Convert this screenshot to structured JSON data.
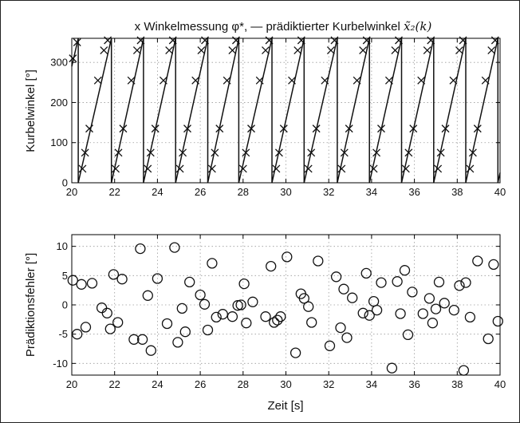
{
  "figure": {
    "title_prefix": "x Winkelmessung φ*, — prädiktierter Kurbelwinkel ",
    "title_math": "x̃₂(k)"
  },
  "chart_data": [
    {
      "type": "line",
      "ylabel": "Kurbelwinkel [°]",
      "xlabel": "",
      "xlim": [
        20,
        40
      ],
      "ylim": [
        0,
        360
      ],
      "xticks": [
        20,
        22,
        24,
        26,
        28,
        30,
        32,
        34,
        36,
        38,
        40
      ],
      "yticks": [
        0,
        100,
        200,
        300
      ],
      "grid": true,
      "cycle_starts": [
        20.3,
        21.85,
        23.35,
        24.85,
        26.35,
        27.8,
        29.35,
        30.85,
        32.4,
        33.9,
        35.4,
        36.9,
        38.4,
        39.9
      ],
      "series": [
        {
          "name": "prädiktierter Kurbelwinkel",
          "style": "line",
          "points": [
            [
              20.0,
              290
            ],
            [
              20.3,
              360
            ],
            [
              20.3,
              0
            ],
            [
              21.85,
              360
            ],
            [
              21.85,
              0
            ],
            [
              23.35,
              360
            ],
            [
              23.35,
              0
            ],
            [
              24.85,
              360
            ],
            [
              24.85,
              0
            ],
            [
              26.35,
              360
            ],
            [
              26.35,
              0
            ],
            [
              27.8,
              360
            ],
            [
              27.8,
              0
            ],
            [
              29.35,
              360
            ],
            [
              29.35,
              0
            ],
            [
              30.85,
              360
            ],
            [
              30.85,
              0
            ],
            [
              32.4,
              360
            ],
            [
              32.4,
              0
            ],
            [
              33.9,
              360
            ],
            [
              33.9,
              0
            ],
            [
              35.4,
              360
            ],
            [
              35.4,
              0
            ],
            [
              36.9,
              360
            ],
            [
              36.9,
              0
            ],
            [
              38.4,
              360
            ],
            [
              38.4,
              0
            ],
            [
              39.9,
              360
            ],
            [
              39.9,
              0
            ],
            [
              40.0,
              25
            ]
          ]
        },
        {
          "name": "Winkelmessung",
          "style": "x-markers",
          "points": [
            [
              20.05,
              310
            ],
            [
              20.25,
              350
            ],
            [
              20.5,
              35
            ],
            [
              20.62,
              75
            ],
            [
              20.82,
              135
            ],
            [
              21.22,
              255
            ],
            [
              21.5,
              330
            ],
            [
              21.68,
              355
            ],
            [
              22.05,
              35
            ],
            [
              22.18,
              75
            ],
            [
              22.4,
              135
            ],
            [
              22.78,
              255
            ],
            [
              23.05,
              330
            ],
            [
              23.22,
              355
            ],
            [
              23.55,
              35
            ],
            [
              23.68,
              75
            ],
            [
              23.9,
              135
            ],
            [
              24.28,
              255
            ],
            [
              24.55,
              330
            ],
            [
              24.72,
              355
            ],
            [
              25.05,
              35
            ],
            [
              25.18,
              75
            ],
            [
              25.4,
              135
            ],
            [
              25.78,
              255
            ],
            [
              26.05,
              330
            ],
            [
              26.22,
              355
            ],
            [
              26.55,
              35
            ],
            [
              26.68,
              75
            ],
            [
              26.9,
              135
            ],
            [
              27.25,
              255
            ],
            [
              27.5,
              330
            ],
            [
              27.67,
              355
            ],
            [
              28.0,
              35
            ],
            [
              28.13,
              75
            ],
            [
              28.38,
              135
            ],
            [
              28.78,
              255
            ],
            [
              29.05,
              330
            ],
            [
              29.22,
              355
            ],
            [
              29.55,
              35
            ],
            [
              29.68,
              75
            ],
            [
              29.9,
              135
            ],
            [
              30.28,
              255
            ],
            [
              30.55,
              330
            ],
            [
              30.72,
              355
            ],
            [
              31.05,
              35
            ],
            [
              31.18,
              75
            ],
            [
              31.42,
              135
            ],
            [
              31.82,
              255
            ],
            [
              32.1,
              330
            ],
            [
              32.27,
              355
            ],
            [
              32.6,
              35
            ],
            [
              32.73,
              75
            ],
            [
              32.95,
              135
            ],
            [
              33.32,
              255
            ],
            [
              33.6,
              330
            ],
            [
              33.77,
              355
            ],
            [
              34.1,
              35
            ],
            [
              34.23,
              75
            ],
            [
              34.45,
              135
            ],
            [
              34.82,
              255
            ],
            [
              35.1,
              330
            ],
            [
              35.27,
              355
            ],
            [
              35.6,
              35
            ],
            [
              35.73,
              75
            ],
            [
              35.95,
              135
            ],
            [
              36.32,
              255
            ],
            [
              36.6,
              330
            ],
            [
              36.77,
              355
            ],
            [
              37.1,
              35
            ],
            [
              37.23,
              75
            ],
            [
              37.45,
              135
            ],
            [
              37.82,
              255
            ],
            [
              38.1,
              330
            ],
            [
              38.27,
              355
            ],
            [
              38.6,
              35
            ],
            [
              38.73,
              75
            ],
            [
              38.95,
              135
            ],
            [
              39.32,
              255
            ],
            [
              39.6,
              330
            ],
            [
              39.77,
              355
            ]
          ]
        }
      ]
    },
    {
      "type": "scatter",
      "ylabel": "Prädiktionsfehler [°]",
      "xlabel": "Zeit [s]",
      "xlim": [
        20,
        40
      ],
      "ylim": [
        -12,
        12
      ],
      "xticks": [
        20,
        22,
        24,
        26,
        28,
        30,
        32,
        34,
        36,
        38,
        40
      ],
      "yticks": [
        -10,
        -5,
        0,
        5,
        10
      ],
      "grid": true,
      "series": [
        {
          "name": "Prädiktionsfehler",
          "style": "o-markers",
          "points": [
            [
              20.05,
              4.2
            ],
            [
              20.25,
              -5.0
            ],
            [
              20.45,
              3.5
            ],
            [
              20.65,
              -3.8
            ],
            [
              20.95,
              3.7
            ],
            [
              21.4,
              -0.5
            ],
            [
              21.65,
              -1.4
            ],
            [
              21.8,
              -4.1
            ],
            [
              21.95,
              5.2
            ],
            [
              22.15,
              -3.0
            ],
            [
              22.35,
              4.4
            ],
            [
              22.9,
              -5.9
            ],
            [
              23.2,
              9.6
            ],
            [
              23.3,
              -5.9
            ],
            [
              23.55,
              1.6
            ],
            [
              23.7,
              -7.8
            ],
            [
              24.0,
              4.5
            ],
            [
              24.45,
              -3.2
            ],
            [
              24.8,
              9.8
            ],
            [
              24.95,
              -6.4
            ],
            [
              25.15,
              -0.6
            ],
            [
              25.3,
              -4.6
            ],
            [
              25.5,
              3.9
            ],
            [
              26.0,
              1.7
            ],
            [
              26.2,
              0.1
            ],
            [
              26.35,
              -4.3
            ],
            [
              26.55,
              7.1
            ],
            [
              26.75,
              -2.1
            ],
            [
              27.05,
              -1.6
            ],
            [
              27.5,
              -2.0
            ],
            [
              27.75,
              -0.1
            ],
            [
              27.9,
              0.0
            ],
            [
              28.05,
              3.6
            ],
            [
              28.15,
              -3.1
            ],
            [
              28.45,
              0.5
            ],
            [
              29.05,
              -2.0
            ],
            [
              29.3,
              6.6
            ],
            [
              29.45,
              -3.0
            ],
            [
              29.6,
              -2.6
            ],
            [
              29.75,
              -2.0
            ],
            [
              30.05,
              8.2
            ],
            [
              30.45,
              -8.2
            ],
            [
              30.7,
              1.9
            ],
            [
              30.85,
              1.1
            ],
            [
              31.05,
              -0.3
            ],
            [
              31.2,
              -3.0
            ],
            [
              31.5,
              7.5
            ],
            [
              32.05,
              -7.0
            ],
            [
              32.35,
              4.8
            ],
            [
              32.55,
              -3.9
            ],
            [
              32.7,
              2.7
            ],
            [
              32.85,
              -5.6
            ],
            [
              33.1,
              1.2
            ],
            [
              33.6,
              -1.4
            ],
            [
              33.75,
              5.4
            ],
            [
              33.9,
              -1.8
            ],
            [
              34.1,
              0.6
            ],
            [
              34.25,
              -0.9
            ],
            [
              34.45,
              3.8
            ],
            [
              34.95,
              -10.8
            ],
            [
              35.2,
              4.0
            ],
            [
              35.35,
              -1.5
            ],
            [
              35.55,
              5.9
            ],
            [
              35.7,
              -5.1
            ],
            [
              35.9,
              2.2
            ],
            [
              36.4,
              -1.5
            ],
            [
              36.7,
              1.1
            ],
            [
              36.85,
              -3.1
            ],
            [
              37.0,
              -0.7
            ],
            [
              37.15,
              3.9
            ],
            [
              37.4,
              0.3
            ],
            [
              37.85,
              -0.9
            ],
            [
              38.1,
              3.3
            ],
            [
              38.3,
              -11.2
            ],
            [
              38.4,
              3.8
            ],
            [
              38.6,
              -2.1
            ],
            [
              38.95,
              7.5
            ],
            [
              39.45,
              -5.8
            ],
            [
              39.7,
              6.9
            ],
            [
              39.9,
              -2.8
            ]
          ]
        }
      ]
    }
  ]
}
